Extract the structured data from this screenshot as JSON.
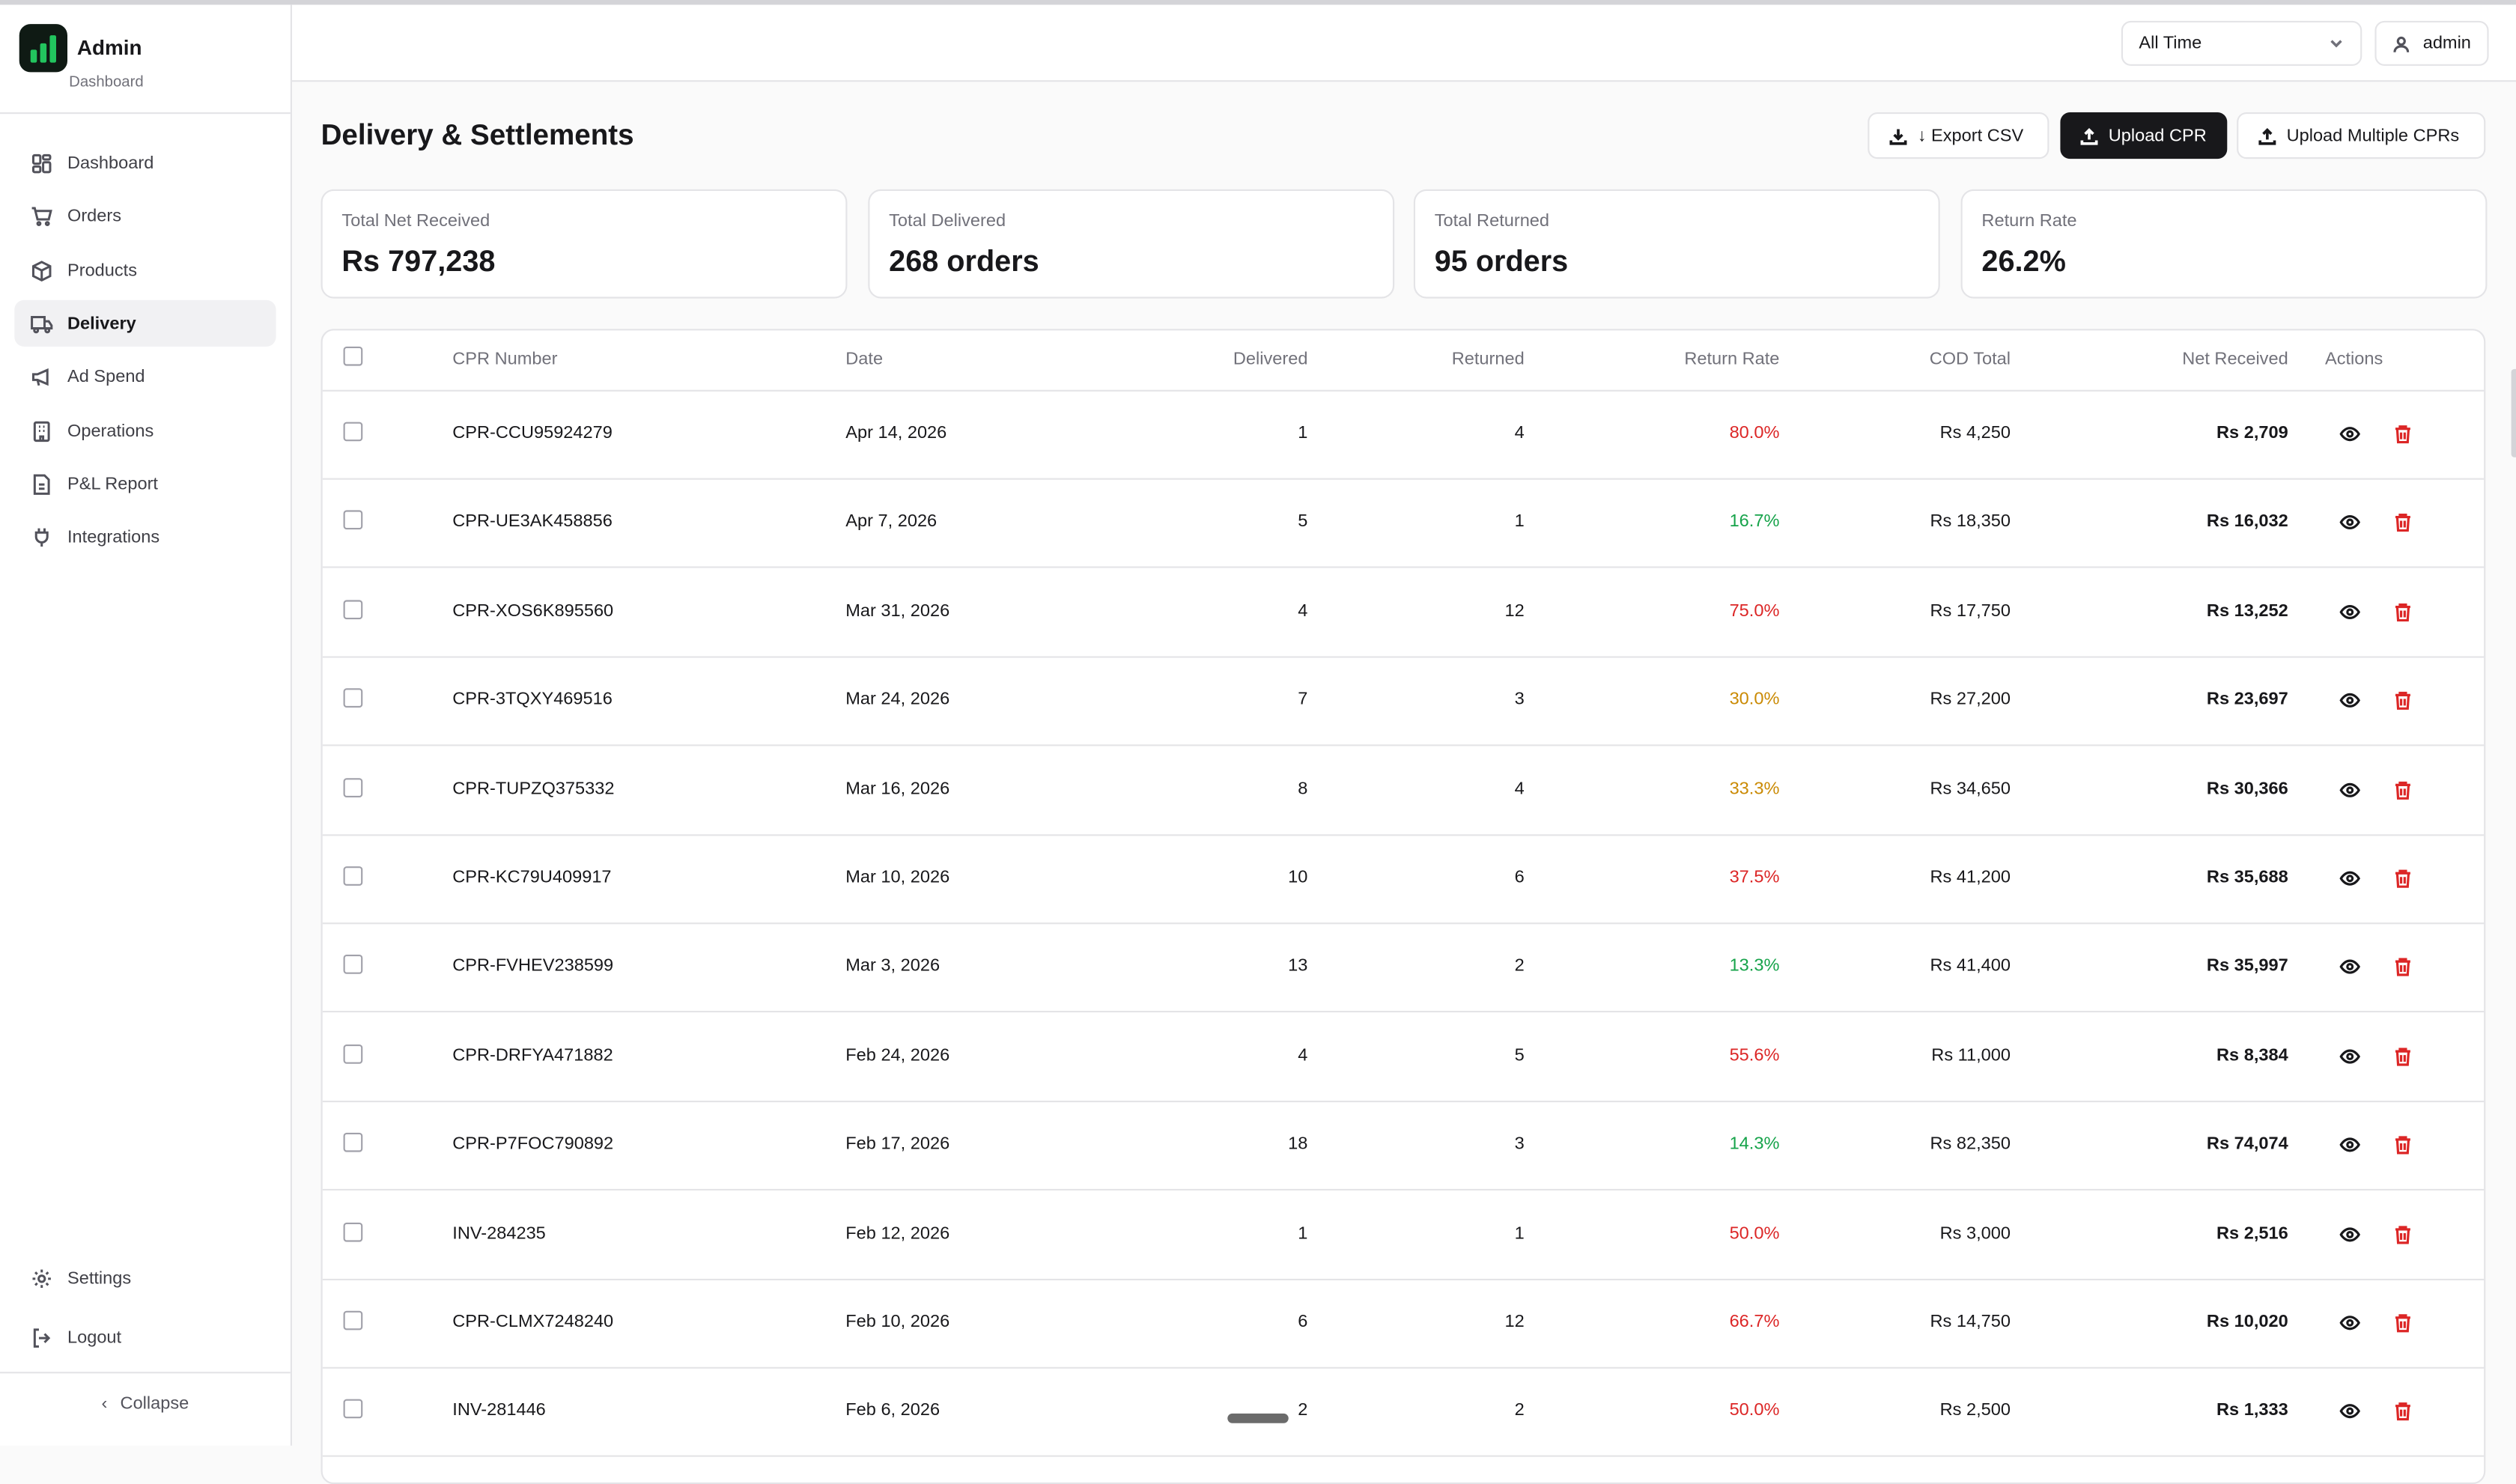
{
  "sidebar": {
    "brand_title": "Admin",
    "brand_subtitle": "Dashboard",
    "items": [
      {
        "label": "Dashboard",
        "icon": "dashboard-icon"
      },
      {
        "label": "Orders",
        "icon": "cart-icon"
      },
      {
        "label": "Products",
        "icon": "package-icon"
      },
      {
        "label": "Delivery",
        "icon": "truck-icon"
      },
      {
        "label": "Ad Spend",
        "icon": "megaphone-icon"
      },
      {
        "label": "Operations",
        "icon": "building-icon"
      },
      {
        "label": "P&L Report",
        "icon": "report-icon"
      },
      {
        "label": "Integrations",
        "icon": "plug-icon"
      }
    ],
    "active_item": "Delivery",
    "settings_label": "Settings",
    "logout_label": "Logout",
    "collapse_label": "Collapse"
  },
  "header": {
    "range_value": "All Time",
    "user_label": "admin"
  },
  "page": {
    "title": "Delivery & Settlements",
    "export_label": "↓ Export CSV",
    "upload_label": "Upload CPR",
    "upload_multiple_label": "Upload Multiple CPRs"
  },
  "stats": [
    {
      "label": "Total Net Received",
      "value": "Rs 797,238"
    },
    {
      "label": "Total Delivered",
      "value": "268 orders"
    },
    {
      "label": "Total Returned",
      "value": "95 orders"
    },
    {
      "label": "Return Rate",
      "value": "26.2%"
    }
  ],
  "table": {
    "columns": [
      "CPR Number",
      "Date",
      "Delivered",
      "Returned",
      "Return Rate",
      "COD Total",
      "Net Received",
      "Actions"
    ],
    "rows": [
      {
        "cpr": "CPR-CCU95924279",
        "date": "Apr 14, 2026",
        "delivered": "1",
        "returned": "4",
        "rate": "80.0%",
        "rate_color": "#dc2626",
        "cod": "Rs 4,250",
        "net": "Rs 2,709"
      },
      {
        "cpr": "CPR-UE3AK458856",
        "date": "Apr 7, 2026",
        "delivered": "5",
        "returned": "1",
        "rate": "16.7%",
        "rate_color": "#16a34a",
        "cod": "Rs 18,350",
        "net": "Rs 16,032"
      },
      {
        "cpr": "CPR-XOS6K895560",
        "date": "Mar 31, 2026",
        "delivered": "4",
        "returned": "12",
        "rate": "75.0%",
        "rate_color": "#dc2626",
        "cod": "Rs 17,750",
        "net": "Rs 13,252"
      },
      {
        "cpr": "CPR-3TQXY469516",
        "date": "Mar 24, 2026",
        "delivered": "7",
        "returned": "3",
        "rate": "30.0%",
        "rate_color": "#ca8a04",
        "cod": "Rs 27,200",
        "net": "Rs 23,697"
      },
      {
        "cpr": "CPR-TUPZQ375332",
        "date": "Mar 16, 2026",
        "delivered": "8",
        "returned": "4",
        "rate": "33.3%",
        "rate_color": "#ca8a04",
        "cod": "Rs 34,650",
        "net": "Rs 30,366"
      },
      {
        "cpr": "CPR-KC79U409917",
        "date": "Mar 10, 2026",
        "delivered": "10",
        "returned": "6",
        "rate": "37.5%",
        "rate_color": "#dc2626",
        "cod": "Rs 41,200",
        "net": "Rs 35,688"
      },
      {
        "cpr": "CPR-FVHEV238599",
        "date": "Mar 3, 2026",
        "delivered": "13",
        "returned": "2",
        "rate": "13.3%",
        "rate_color": "#16a34a",
        "cod": "Rs 41,400",
        "net": "Rs 35,997"
      },
      {
        "cpr": "CPR-DRFYA471882",
        "date": "Feb 24, 2026",
        "delivered": "4",
        "returned": "5",
        "rate": "55.6%",
        "rate_color": "#dc2626",
        "cod": "Rs 11,000",
        "net": "Rs 8,384"
      },
      {
        "cpr": "CPR-P7FOC790892",
        "date": "Feb 17, 2026",
        "delivered": "18",
        "returned": "3",
        "rate": "14.3%",
        "rate_color": "#16a34a",
        "cod": "Rs 82,350",
        "net": "Rs 74,074"
      },
      {
        "cpr": "INV-284235",
        "date": "Feb 12, 2026",
        "delivered": "1",
        "returned": "1",
        "rate": "50.0%",
        "rate_color": "#dc2626",
        "cod": "Rs 3,000",
        "net": "Rs 2,516"
      },
      {
        "cpr": "CPR-CLMX7248240",
        "date": "Feb 10, 2026",
        "delivered": "6",
        "returned": "12",
        "rate": "66.7%",
        "rate_color": "#dc2626",
        "cod": "Rs 14,750",
        "net": "Rs 10,020"
      },
      {
        "cpr": "INV-281446",
        "date": "Feb 6, 2026",
        "delivered": "2",
        "returned": "2",
        "rate": "50.0%",
        "rate_color": "#dc2626",
        "cod": "Rs 2,500",
        "net": "Rs 1,333"
      }
    ]
  }
}
